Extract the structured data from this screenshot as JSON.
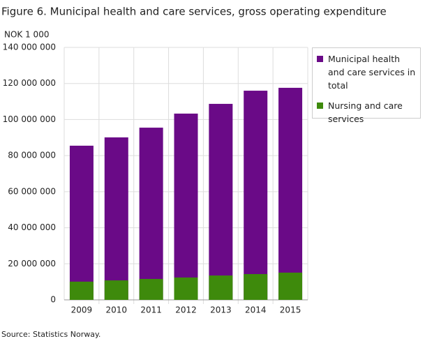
{
  "chart_data": {
    "type": "bar",
    "title": "Figure 6. Municipal health and care services, gross operating expenditure",
    "y_axis_label": "NOK 1 000",
    "source": "Source: Statistics Norway.",
    "categories": [
      "2009",
      "2010",
      "2011",
      "2012",
      "2013",
      "2014",
      "2015"
    ],
    "series": [
      {
        "name": "Municipal health and care services in total",
        "color": "#6a0a87",
        "values": [
          85500000,
          90100000,
          95500000,
          103300000,
          108700000,
          116000000,
          117600000
        ]
      },
      {
        "name": "Nursing and care services",
        "color": "#3e8a0c",
        "values": [
          10100000,
          10800000,
          11600000,
          12400000,
          13500000,
          14300000,
          15100000
        ]
      }
    ],
    "ylim": [
      0,
      140000000
    ],
    "yticks": [
      0,
      {
        "value": 20000000,
        "label": "20 000 000"
      },
      {
        "value": 40000000,
        "label": "40 000 000"
      },
      {
        "value": 60000000,
        "label": "60 000 000"
      },
      {
        "value": 80000000,
        "label": "80 000 000"
      },
      {
        "value": 100000000,
        "label": "100 000 000"
      },
      {
        "value": 120000000,
        "label": "120 000 000"
      },
      {
        "value": 140000000,
        "label": "140 000 000"
      }
    ],
    "grid": true
  }
}
